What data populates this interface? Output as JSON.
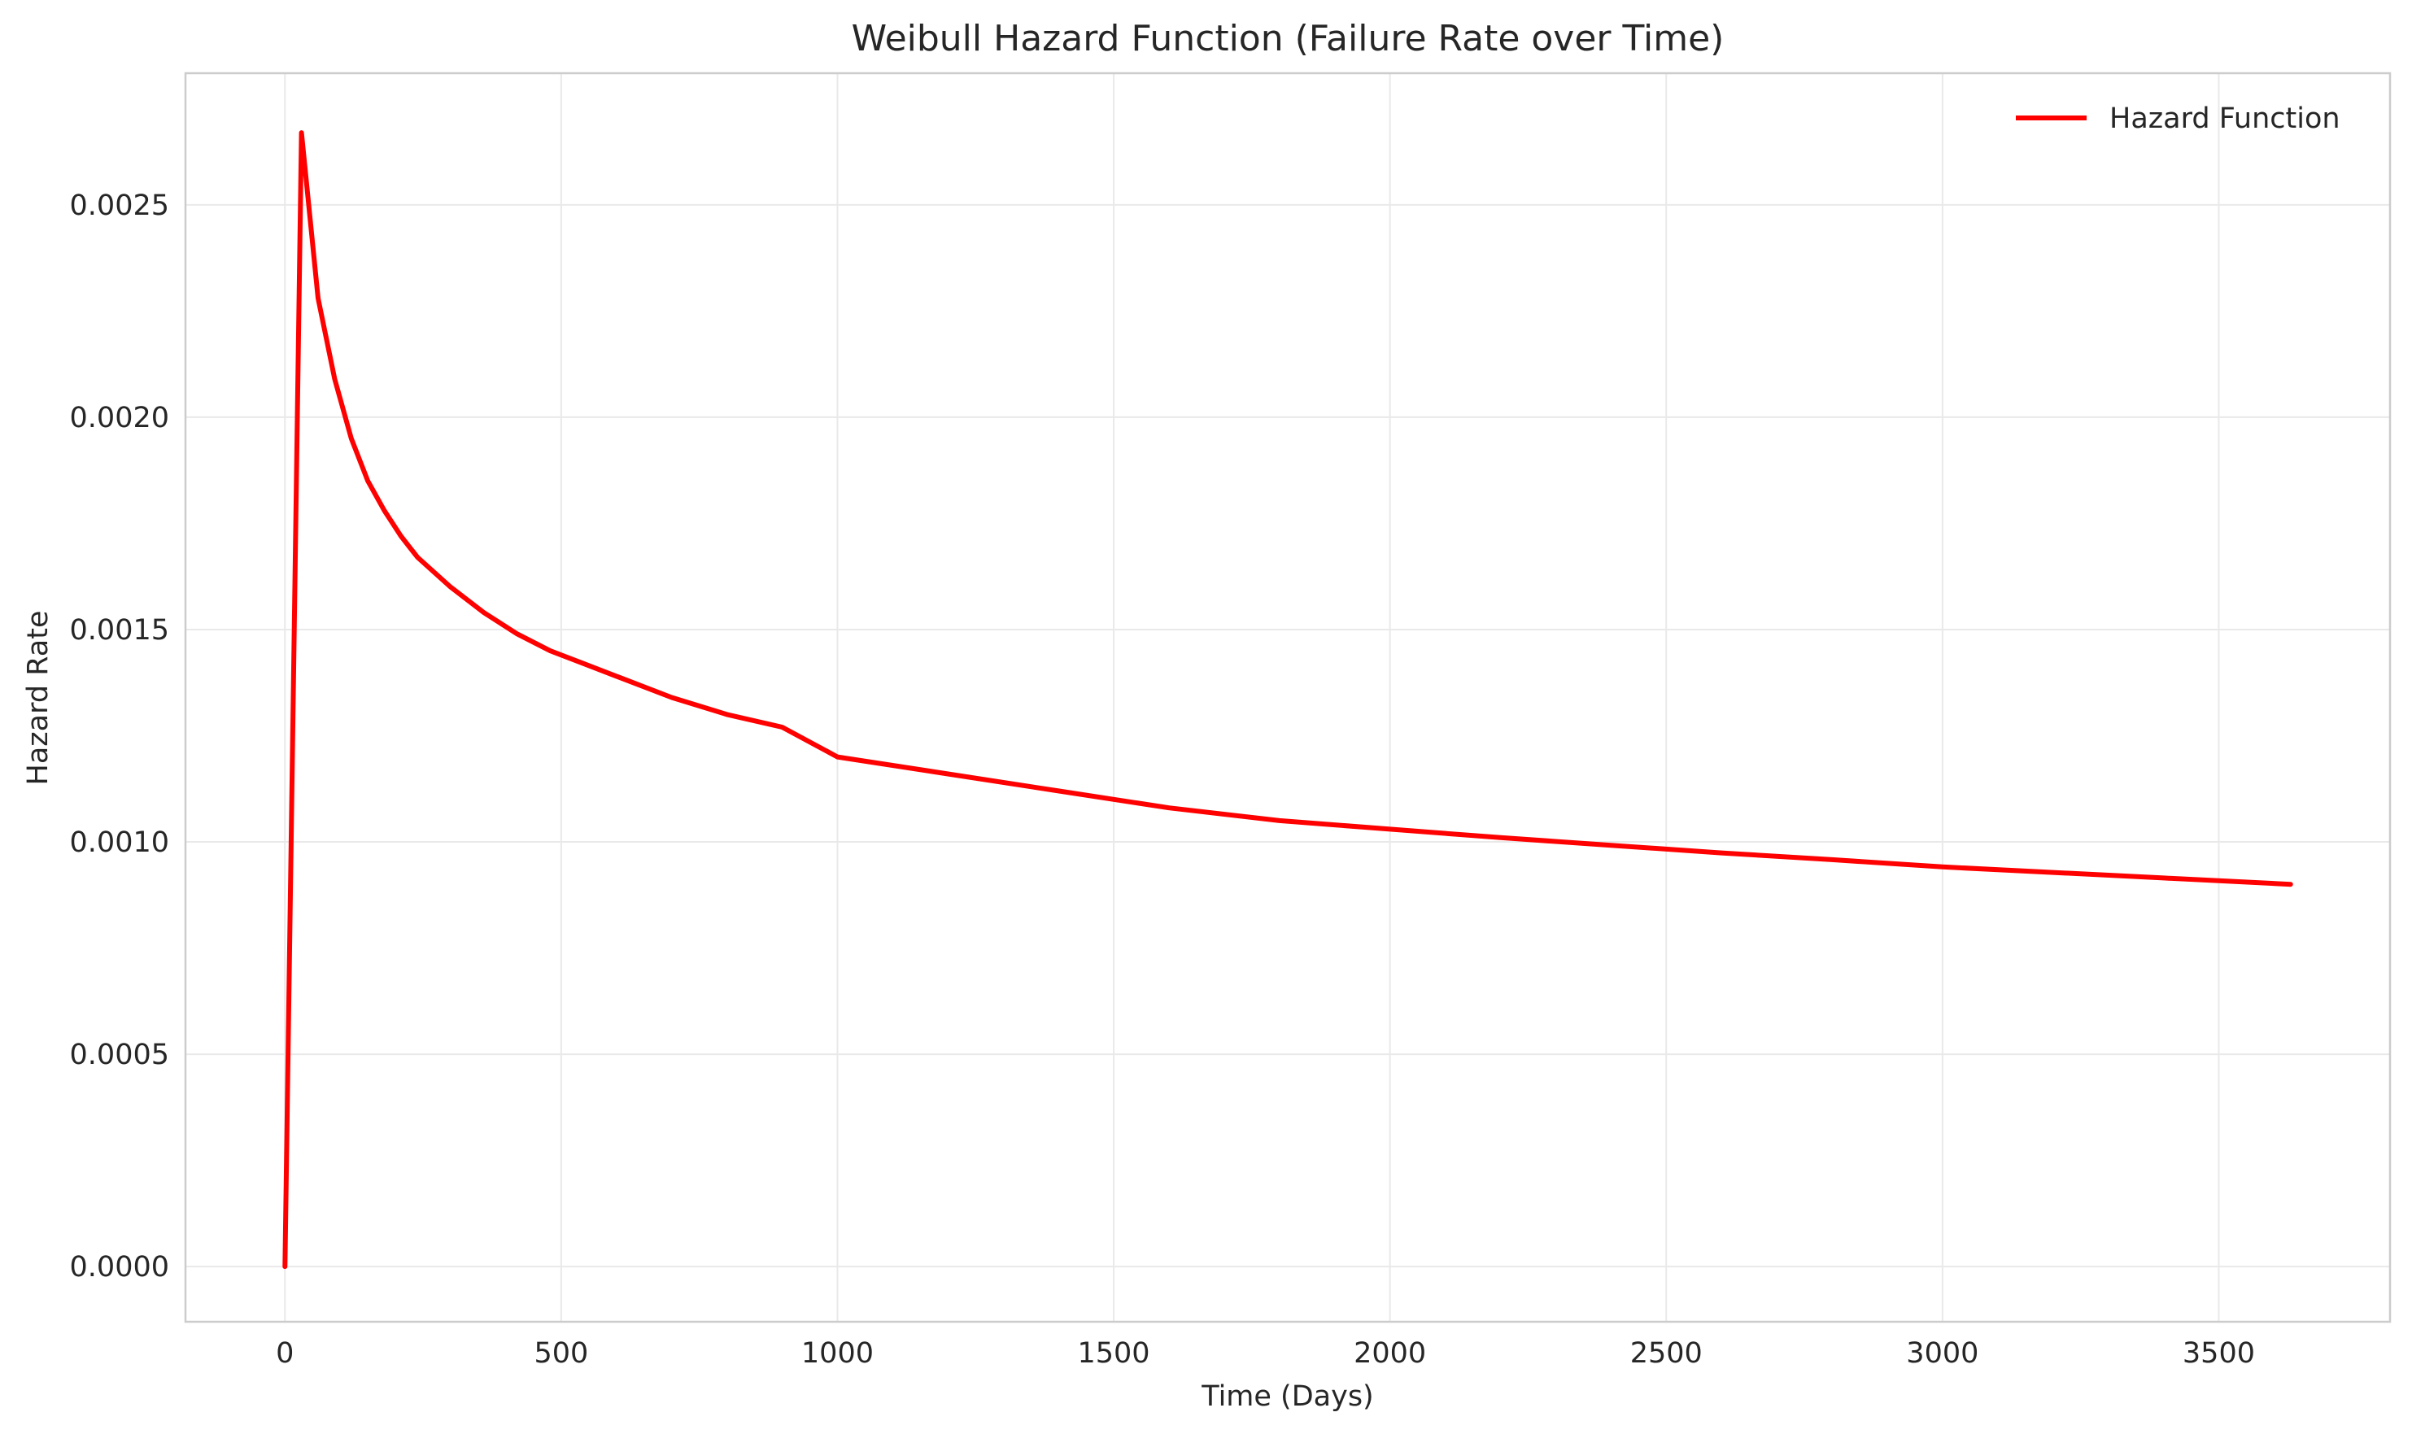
{
  "chart_data": {
    "type": "line",
    "title": "Weibull Hazard Function (Failure Rate over Time)",
    "xlabel": "Time (Days)",
    "ylabel": "Hazard Rate",
    "xlim": [
      -180,
      3810
    ],
    "ylim": [
      -0.00013,
      0.00281
    ],
    "xticks": [
      0,
      500,
      1000,
      1500,
      2000,
      2500,
      3000,
      3500
    ],
    "xtick_labels": [
      "0",
      "500",
      "1000",
      "1500",
      "2000",
      "2500",
      "3000",
      "3500"
    ],
    "yticks": [
      0.0,
      0.0005,
      0.001,
      0.0015,
      0.002,
      0.0025
    ],
    "ytick_labels": [
      "0.0000",
      "0.0005",
      "0.0010",
      "0.0015",
      "0.0020",
      "0.0025"
    ],
    "grid": true,
    "legend_position": "top-right",
    "series": [
      {
        "name": "Hazard Function",
        "color": "#ff0000",
        "x": [
          0,
          30,
          60,
          90,
          120,
          150,
          180,
          210,
          240,
          300,
          360,
          420,
          480,
          540,
          600,
          700,
          800,
          900,
          1000,
          1200,
          1400,
          1600,
          1800,
          2000,
          2200,
          2400,
          2600,
          2800,
          3000,
          3200,
          3400,
          3630
        ],
        "y": [
          0.0,
          0.00267,
          0.00228,
          0.00209,
          0.00195,
          0.00185,
          0.00178,
          0.00172,
          0.00167,
          0.0016,
          0.00154,
          0.00149,
          0.00145,
          0.00142,
          0.00139,
          0.00134,
          0.0013,
          0.00127,
          0.0012,
          0.00116,
          0.00112,
          0.00108,
          0.00105,
          0.00103,
          0.00101,
          0.000992,
          0.000974,
          0.000958,
          0.000941,
          0.000928,
          0.000915,
          0.0009
        ]
      }
    ]
  }
}
